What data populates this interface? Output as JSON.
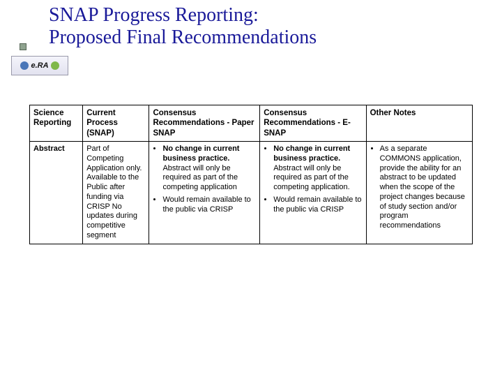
{
  "title_line1": "SNAP Progress Reporting:",
  "title_line2": "Proposed Final Recommendations",
  "logo_text": "e.RA",
  "table": {
    "columns": [
      "Science Reporting",
      "Current Process (SNAP)",
      "Consensus Recommendations - Paper SNAP",
      "Consensus Recommendations - E- SNAP",
      "Other Notes"
    ],
    "row": {
      "label": "Abstract",
      "current": "Part of Competing Application only. Available to the Public after funding via CRISP No updates during competitive segment",
      "paper_items": [
        {
          "lead": "No change in current business practice.",
          "rest": " Abstract will only be required as part of the competing application"
        },
        {
          "lead": "",
          "rest": "Would remain available to the public via CRISP"
        }
      ],
      "esnap_items": [
        {
          "lead": "No change in current business practice.",
          "rest": " Abstract will only be required as part of the competing application."
        },
        {
          "lead": "",
          "rest": "Would remain available to the public via CRISP"
        }
      ],
      "other_items": [
        {
          "lead": "",
          "rest": "As a separate COMMONS application, provide the ability for an abstract to be updated when the scope of the project changes because of study section and/or program recommendations"
        }
      ]
    }
  },
  "style": {
    "title_color": "#1a1a99",
    "title_fontsize": 28,
    "cell_fontsize": 11,
    "border_color": "#000000",
    "background": "#ffffff",
    "col_widths_pct": [
      12,
      15,
      25,
      24,
      24
    ]
  }
}
